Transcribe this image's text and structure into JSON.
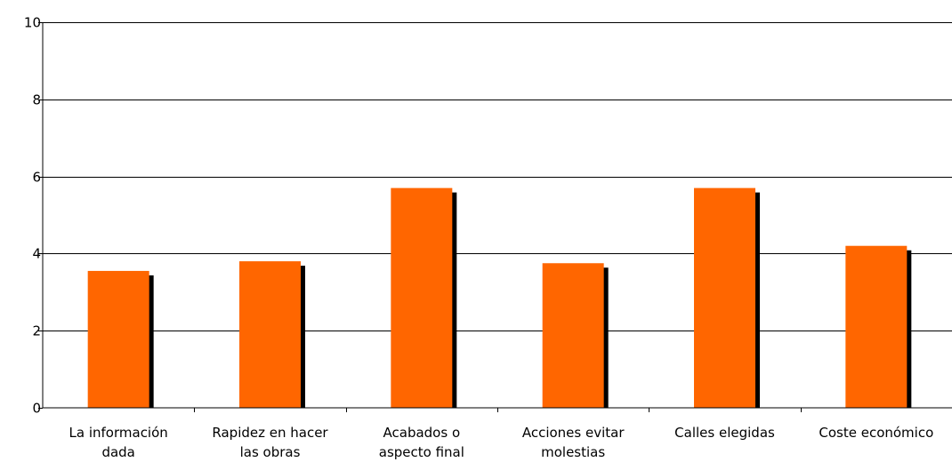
{
  "chart_data": {
    "type": "bar",
    "title": "",
    "xlabel": "",
    "ylabel": "",
    "categories": [
      [
        "La información",
        "dada"
      ],
      [
        "Rapidez en hacer",
        "las obras"
      ],
      [
        "Acabados o",
        "aspecto final"
      ],
      [
        "Acciones evitar",
        "molestias"
      ],
      [
        "Calles elegidas"
      ],
      [
        "Coste económico"
      ]
    ],
    "values": [
      3.55,
      3.8,
      5.7,
      3.75,
      5.7,
      4.2
    ],
    "ylim": [
      0,
      10
    ],
    "yticks": [
      "0",
      "2",
      "4",
      "6",
      "8",
      "10"
    ],
    "grid": true,
    "legend": "none",
    "bar_color": "#ff6600",
    "shadow_color": "#000000"
  }
}
